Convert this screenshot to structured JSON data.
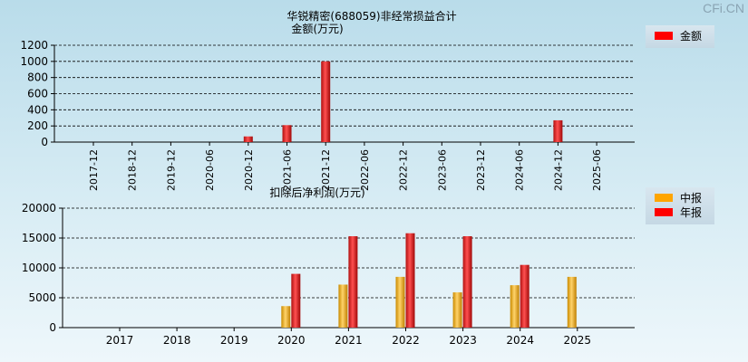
{
  "watermark": "CFi.CN",
  "chart_data": [
    {
      "type": "bar",
      "title": "华锐精密(688059)非经常损益合计",
      "ylabel": "金额(万元)",
      "categories": [
        "2017-12",
        "2018-12",
        "2019-12",
        "2020-06",
        "2020-12",
        "2021-06",
        "2021-12",
        "2022-06",
        "2022-12",
        "2023-06",
        "2023-12",
        "2024-06",
        "2024-12",
        "2025-06"
      ],
      "series": [
        {
          "name": "金额",
          "color": "#ff0000",
          "values": [
            null,
            null,
            null,
            null,
            70,
            210,
            1000,
            null,
            null,
            null,
            null,
            null,
            270,
            null
          ]
        }
      ],
      "ylim": [
        0,
        1200
      ],
      "yticks": [
        0,
        200,
        400,
        600,
        800,
        1000,
        1200
      ],
      "grid": true,
      "legend": "top-right"
    },
    {
      "type": "bar",
      "title": "扣除后净利润(万元)",
      "categories": [
        "2017",
        "2018",
        "2019",
        "2020",
        "2021",
        "2022",
        "2023",
        "2024",
        "2025"
      ],
      "series": [
        {
          "name": "中报",
          "color": "#ffa500",
          "values": [
            null,
            null,
            null,
            3600,
            7200,
            8500,
            5900,
            7100,
            8500
          ]
        },
        {
          "name": "年报",
          "color": "#ff0000",
          "values": [
            null,
            null,
            null,
            9000,
            15300,
            15800,
            15300,
            10500,
            null
          ]
        }
      ],
      "ylim": [
        0,
        20000
      ],
      "yticks": [
        0,
        5000,
        10000,
        15000,
        20000
      ],
      "grid": true,
      "legend": "top-right"
    }
  ]
}
